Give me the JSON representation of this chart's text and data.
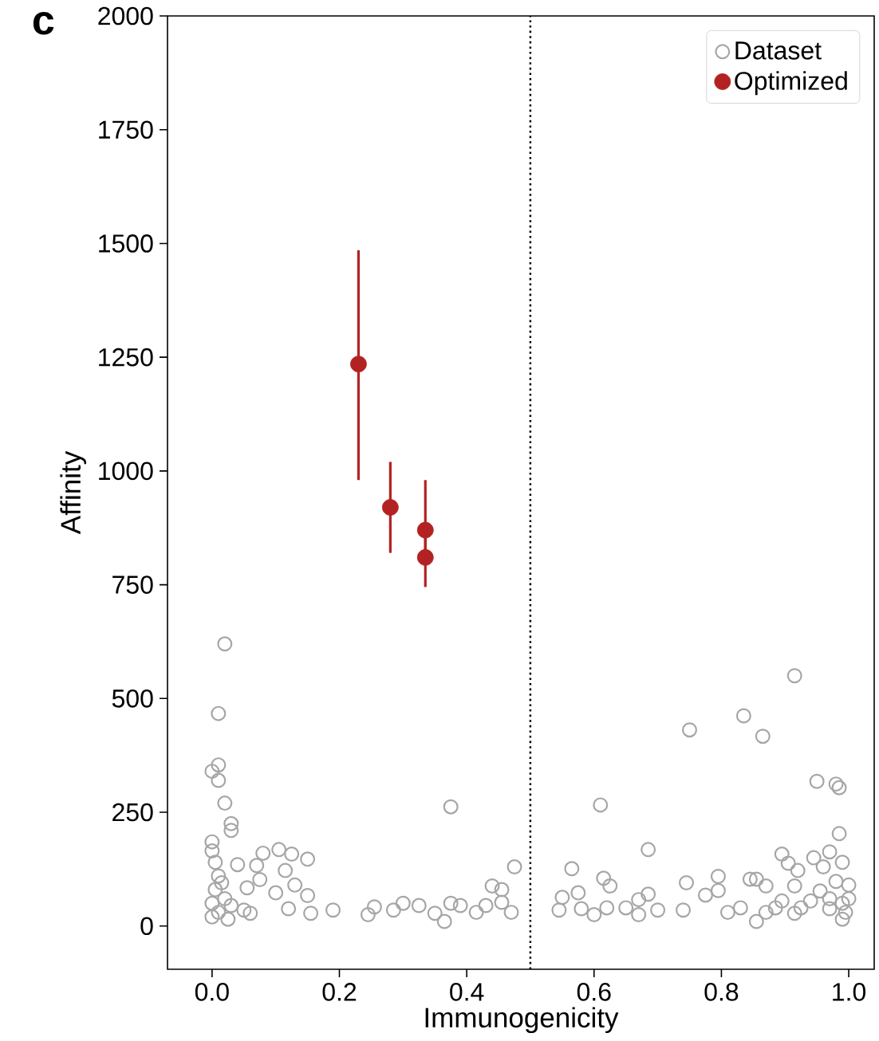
{
  "chart_data": {
    "type": "scatter",
    "title": "c",
    "xlabel": "Immunogenicity",
    "ylabel": "Affinity",
    "xlim": [
      -0.07,
      1.04
    ],
    "ylim": [
      -95,
      2000
    ],
    "xticks": [
      {
        "value": 0,
        "label": "0.0"
      },
      {
        "value": 0.2,
        "label": "0.2"
      },
      {
        "value": 0.4,
        "label": "0.4"
      },
      {
        "value": 0.6,
        "label": "0.6"
      },
      {
        "value": 0.8,
        "label": "0.8"
      },
      {
        "value": 1,
        "label": "1.0"
      }
    ],
    "yticks": [
      0,
      250,
      500,
      750,
      1000,
      1250,
      1500,
      1750,
      2000
    ],
    "grid": false,
    "legend": "top right",
    "marker": "circle",
    "ref_lines": [
      {
        "axis": "x",
        "value": 0.5,
        "color": "#000000",
        "line_style": "dotted"
      }
    ],
    "series": [
      {
        "name": "Dataset",
        "color": "#a6a6a6",
        "x": [
          0.02,
          0.01,
          0.01,
          0.0,
          0.01,
          0.02,
          0.03,
          0.03,
          0.0,
          0.0,
          0.04,
          0.07,
          0.08,
          0.105,
          0.125,
          0.15,
          0.075,
          0.1,
          0.12,
          0.115,
          0.13,
          0.15,
          0.155,
          0.19,
          0.055,
          0.06,
          0.05,
          0.245,
          0.255,
          0.285,
          0.3,
          0.325,
          0.35,
          0.365,
          0.375,
          0.375,
          0.39,
          0.415,
          0.43,
          0.44,
          0.455,
          0.455,
          0.475,
          0.47,
          0.545,
          0.55,
          0.575,
          0.58,
          0.565,
          0.6,
          0.61,
          0.615,
          0.625,
          0.62,
          0.65,
          0.67,
          0.67,
          0.685,
          0.685,
          0.7,
          0.74,
          0.745,
          0.75,
          0.775,
          0.795,
          0.795,
          0.81,
          0.83,
          0.835,
          0.845,
          0.855,
          0.865,
          0.87,
          0.855,
          0.885,
          0.895,
          0.905,
          0.915,
          0.915,
          0.92,
          0.925,
          0.95,
          0.945,
          0.96,
          0.97,
          0.98,
          0.985,
          0.985,
          0.99,
          0.98,
          0.955,
          0.94,
          0.99,
          0.99,
          0.97,
          0.915,
          0.895,
          0.87,
          0.0,
          0.005,
          0.01,
          0.0,
          0.01,
          0.02,
          0.015,
          0.005,
          0.03,
          0.025,
          1.0,
          0.995,
          1.0,
          0.97
        ],
        "values": [
          620,
          467,
          354,
          340,
          320,
          270,
          225,
          210,
          185,
          165,
          135,
          133,
          160,
          168,
          158,
          147,
          102,
          73,
          38,
          122,
          90,
          67,
          28,
          35,
          84,
          28,
          35,
          25,
          42,
          35,
          50,
          45,
          28,
          10,
          262,
          50,
          45,
          30,
          45,
          88,
          80,
          52,
          130,
          30,
          35,
          63,
          73,
          38,
          126,
          25,
          266,
          105,
          88,
          40,
          40,
          58,
          25,
          168,
          70,
          35,
          35,
          95,
          431,
          68,
          109,
          78,
          30,
          40,
          462,
          103,
          103,
          417,
          88,
          10,
          40,
          158,
          138,
          88,
          550,
          122,
          40,
          318,
          150,
          130,
          163,
          312,
          304,
          203,
          140,
          98,
          77,
          55,
          50,
          15,
          38,
          28,
          55,
          30,
          50,
          80,
          110,
          20,
          30,
          60,
          95,
          140,
          45,
          15,
          60,
          30,
          90,
          60
        ]
      },
      {
        "name": "Optimized",
        "color": "#b22222",
        "x": [
          0.23,
          0.28,
          0.335,
          0.335
        ],
        "values": [
          1235,
          920,
          870,
          810
        ],
        "errors": [
          [
            980,
            1485
          ],
          [
            820,
            1020
          ],
          [
            800,
            980
          ],
          [
            745,
            880
          ]
        ]
      }
    ]
  }
}
